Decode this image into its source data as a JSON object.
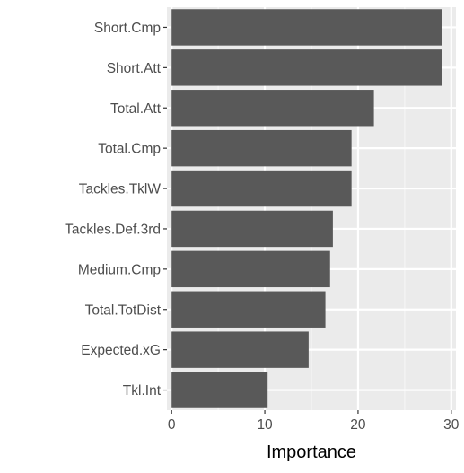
{
  "chart_data": {
    "type": "bar",
    "orientation": "horizontal",
    "categories": [
      "Short.Cmp",
      "Short.Att",
      "Total.Att",
      "Total.Cmp",
      "Tackles.TklW",
      "Tackles.Def.3rd",
      "Medium.Cmp",
      "Total.TotDist",
      "Expected.xG",
      "Tkl.Int"
    ],
    "values": [
      29.0,
      29.0,
      21.7,
      19.3,
      19.3,
      17.3,
      17.0,
      16.5,
      14.7,
      10.3
    ],
    "xlabel": "Importance",
    "ylabel": "",
    "xlim": [
      -0.5,
      30.5
    ],
    "xticks": [
      0,
      10,
      20,
      30
    ],
    "grid": true,
    "colors": {
      "bar": "#595959",
      "panel": "#ebebeb",
      "grid_major": "#ffffff",
      "grid_minor": "#f5f5f5"
    }
  }
}
